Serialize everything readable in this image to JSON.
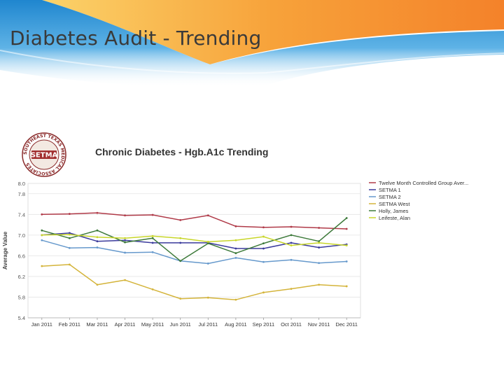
{
  "slide": {
    "title": "Diabetes Audit - Trending",
    "colors": {
      "banner_orange": "#f4882b",
      "banner_blue": "#2a8fd2",
      "banner_light_blue": "#7cc4ee"
    }
  },
  "logo": {
    "icon": "setma-seal-icon",
    "wordmark": "SETMA",
    "ring_text": "SOUTHEAST TEXAS MEDICAL ASSOCIATES"
  },
  "chart_data": {
    "type": "line",
    "title": "Chronic Diabetes -  Hgb.A1c Trending",
    "xlabel": "",
    "ylabel": "Average Value",
    "categories": [
      "Jan 2011",
      "Feb 2011",
      "Mar 2011",
      "Apr 2011",
      "May 2011",
      "Jun 2011",
      "Jul 2011",
      "Aug 2011",
      "Sep 2011",
      "Oct 2011",
      "Nov 2011",
      "Dec 2011"
    ],
    "ylim": [
      5.4,
      8.0
    ],
    "yticks": [
      "5.4",
      "5.8",
      "6.2",
      "6.6",
      "7.0",
      "7.4",
      "7.8",
      "8.0"
    ],
    "grid": true,
    "legend_position": "right",
    "series": [
      {
        "name": "Twelve Month Controlled Group Aver...",
        "color": "#b03a48",
        "values": [
          7.4,
          7.41,
          7.43,
          7.38,
          7.39,
          7.29,
          7.38,
          7.17,
          7.15,
          7.16,
          7.14,
          7.12
        ]
      },
      {
        "name": "SETMA 1",
        "color": "#3b3b9c",
        "values": [
          7.0,
          7.04,
          6.88,
          6.9,
          6.85,
          6.85,
          6.85,
          6.74,
          6.74,
          6.85,
          6.76,
          6.82
        ]
      },
      {
        "name": "SETMA 2",
        "color": "#6699cc",
        "values": [
          6.9,
          6.75,
          6.76,
          6.66,
          6.67,
          6.5,
          6.45,
          6.56,
          6.48,
          6.52,
          6.46,
          6.49
        ]
      },
      {
        "name": "SETMA West",
        "color": "#d4b43a",
        "values": [
          6.4,
          6.43,
          6.04,
          6.13,
          5.95,
          5.77,
          5.79,
          5.75,
          5.89,
          5.96,
          6.04,
          6.01
        ]
      },
      {
        "name": "Holly, James",
        "color": "#3d7a3a",
        "values": [
          7.09,
          6.94,
          7.09,
          6.86,
          6.94,
          6.5,
          6.84,
          6.65,
          6.84,
          7.0,
          6.88,
          7.33
        ]
      },
      {
        "name": "Leifeste, Alan",
        "color": "#c8d62a",
        "values": [
          7.0,
          7.01,
          6.96,
          6.94,
          6.98,
          6.94,
          6.87,
          6.9,
          6.97,
          6.8,
          6.85,
          6.8
        ]
      }
    ]
  }
}
